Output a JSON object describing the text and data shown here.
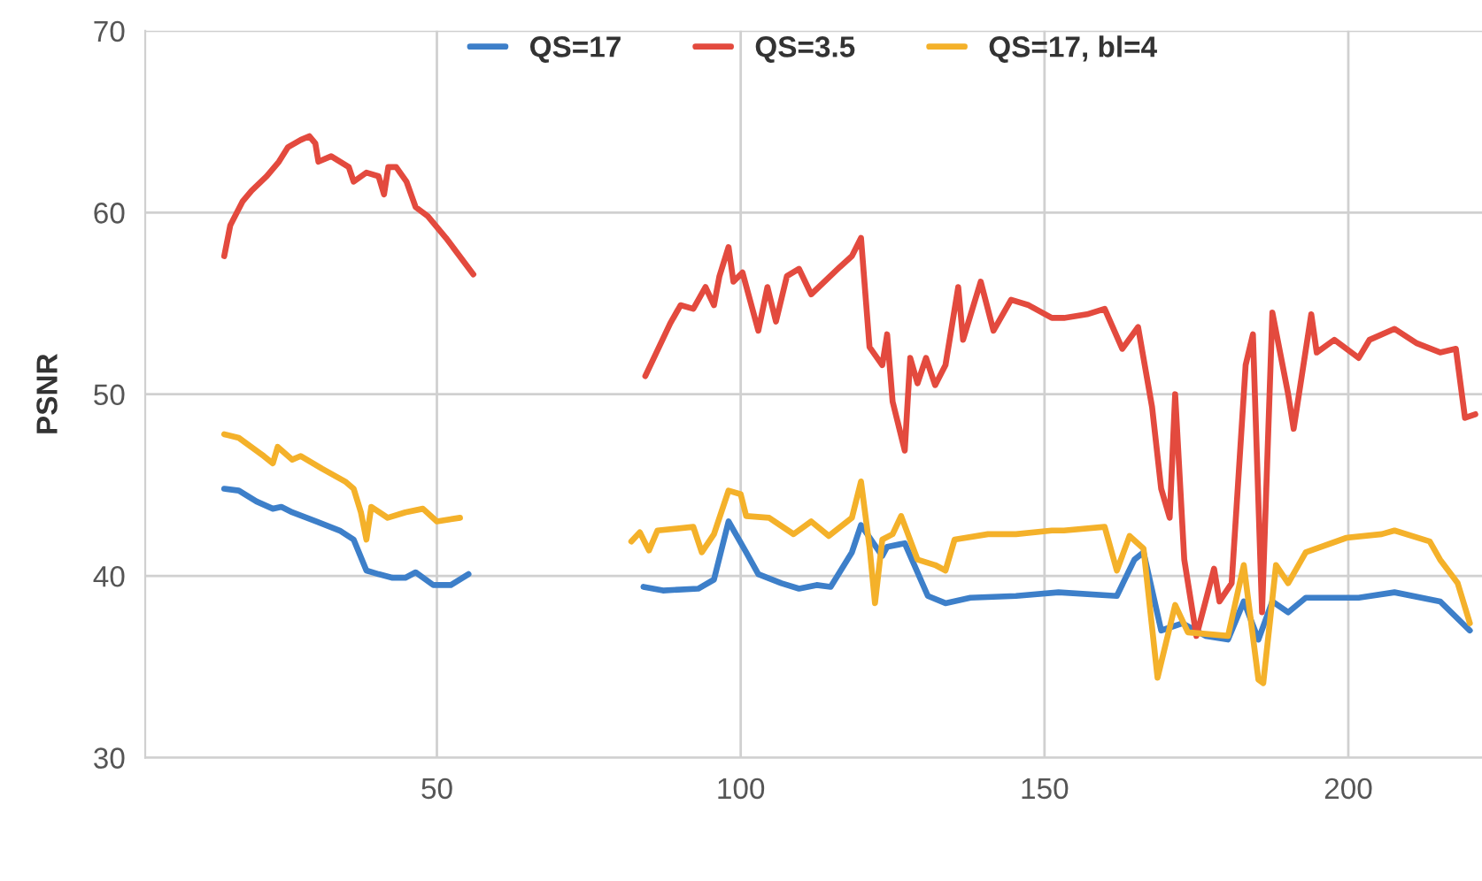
{
  "chart_data": {
    "type": "line",
    "ylabel": "PSNR",
    "xlim": [
      2,
      222
    ],
    "ylim": [
      30,
      70
    ],
    "xticks": [
      50,
      100,
      150,
      200
    ],
    "yticks": [
      30,
      40,
      50,
      60,
      70
    ],
    "grid": true,
    "legend": "top",
    "line_style": "solid",
    "marker": "none",
    "series": [
      {
        "name": "QS=17",
        "color": "#3d7fc9",
        "x": [
          15,
          17.4,
          20.3,
          23,
          24.4,
          26.2,
          30.2,
          34,
          36.3,
          38.4,
          40.4,
          42.7,
          44.8,
          46.5,
          49.4,
          52.3,
          55.2,
          70,
          84,
          87.2,
          93,
          95.6,
          98,
          100.9,
          102.9,
          106.7,
          109.6,
          112.5,
          114.8,
          118.3,
          119.8,
          123.3,
          124.1,
          127,
          130.8,
          133.7,
          137.8,
          145.3,
          152.3,
          161.9,
          164.8,
          166.3,
          169.2,
          172.7,
          176.5,
          180.2,
          182.8,
          185.2,
          187.5,
          190.1,
          193,
          201.7,
          207.6,
          215.1,
          220
        ],
        "values": [
          44.8,
          44.7,
          44.1,
          43.7,
          43.8,
          43.5,
          43,
          42.5,
          42,
          40.3,
          40.1,
          39.9,
          39.9,
          40.2,
          39.5,
          39.5,
          40.1,
          null,
          39.4,
          39.2,
          39.3,
          39.8,
          43,
          41.3,
          40.1,
          39.6,
          39.3,
          39.5,
          39.4,
          41.3,
          42.8,
          41.1,
          41.6,
          41.8,
          38.9,
          38.5,
          38.8,
          38.9,
          39.1,
          38.9,
          40.9,
          41.3,
          37,
          37.4,
          36.7,
          36.5,
          38.6,
          36.5,
          38.6,
          38,
          38.8,
          38.8,
          39.1,
          38.6,
          37
        ]
      },
      {
        "name": "QS=3.5",
        "color": "#e34a3e",
        "x": [
          15,
          16,
          18,
          19.5,
          22,
          24,
          25.5,
          27.6,
          29,
          30,
          30.5,
          32.6,
          35.5,
          36.3,
          38.4,
          40.4,
          41.3,
          42,
          43.3,
          45,
          46.5,
          48.5,
          51.5,
          56,
          70,
          84.3,
          88.4,
          90.1,
          92.2,
          94.2,
          95.6,
          96.5,
          98,
          98.8,
          100.3,
          102.9,
          104.4,
          105.8,
          107.6,
          109.6,
          111.6,
          116.3,
          118.3,
          119.8,
          121.2,
          123.3,
          124.1,
          125,
          127,
          127.9,
          129.1,
          130.5,
          132,
          133.7,
          135.8,
          136.6,
          139.5,
          141.6,
          144.5,
          147.4,
          151.2,
          153.2,
          157,
          159.9,
          162.8,
          165.4,
          167.7,
          169.2,
          170.6,
          171.5,
          173,
          175,
          176.5,
          177.9,
          178.8,
          180.8,
          183.1,
          184.3,
          185.8,
          187.5,
          190.1,
          191,
          193.9,
          194.8,
          197.7,
          201.7,
          203.5,
          207.6,
          211.3,
          215.1,
          217.7,
          219.2,
          220.9
        ],
        "values": [
          57.6,
          59.3,
          60.6,
          61.2,
          62,
          62.8,
          63.6,
          64,
          64.2,
          63.8,
          62.8,
          63.1,
          62.5,
          61.7,
          62.2,
          62,
          61,
          62.5,
          62.5,
          61.7,
          60.3,
          59.8,
          58.6,
          56.6,
          null,
          51,
          53.9,
          54.9,
          54.7,
          55.9,
          54.9,
          56.5,
          58.1,
          56.2,
          56.7,
          53.5,
          55.9,
          54,
          56.5,
          56.9,
          55.5,
          57,
          57.6,
          58.6,
          52.6,
          51.6,
          53.3,
          49.6,
          46.9,
          52,
          50.6,
          52,
          50.5,
          51.6,
          55.9,
          53,
          56.2,
          53.5,
          55.2,
          54.9,
          54.2,
          54.2,
          54.4,
          54.7,
          52.5,
          53.7,
          49.3,
          44.8,
          43.2,
          50,
          40.9,
          36.7,
          38.6,
          40.4,
          38.6,
          39.6,
          51.6,
          53.3,
          38,
          54.5,
          50,
          48.1,
          54.4,
          52.3,
          53,
          52,
          53,
          53.6,
          52.8,
          52.3,
          52.5,
          48.7,
          48.9
        ]
      },
      {
        "name": "QS=17, bl=4",
        "color": "#f4b12a",
        "x": [
          15,
          17.4,
          21.5,
          23,
          23.8,
          26.2,
          27.6,
          31.1,
          34.9,
          36.3,
          37.5,
          38.4,
          39.2,
          41.9,
          44.8,
          47.7,
          50,
          53.8,
          70,
          82,
          83.4,
          84.9,
          86.3,
          92.2,
          93.6,
          95.6,
          98,
          100,
          100.9,
          104.7,
          108.7,
          111.6,
          114.5,
          118.3,
          119.8,
          121.2,
          122.1,
          123.3,
          125,
          126.4,
          129.1,
          132,
          133.7,
          135.2,
          140.7,
          145.3,
          151.2,
          153.2,
          159.9,
          161.9,
          164,
          166.3,
          168.6,
          171.5,
          173.6,
          180.2,
          182.8,
          185.2,
          186,
          188.1,
          190.1,
          193,
          199.7,
          205.5,
          207.6,
          213.4,
          215.1,
          218,
          220
        ],
        "values": [
          47.8,
          47.6,
          46.6,
          46.2,
          47.1,
          46.4,
          46.6,
          45.9,
          45.2,
          44.8,
          43.5,
          42,
          43.8,
          43.2,
          43.5,
          43.7,
          43,
          43.2,
          null,
          41.9,
          42.4,
          41.4,
          42.5,
          42.7,
          41.3,
          42.3,
          44.7,
          44.5,
          43.3,
          43.2,
          42.3,
          43,
          42.2,
          43.2,
          45.2,
          41.6,
          38.5,
          42,
          42.3,
          43.3,
          40.9,
          40.6,
          40.3,
          42,
          42.3,
          42.3,
          42.5,
          42.5,
          42.7,
          40.3,
          42.2,
          41.5,
          34.4,
          38.4,
          36.9,
          36.7,
          40.6,
          34.3,
          34.1,
          40.6,
          39.6,
          41.3,
          42.1,
          42.3,
          42.5,
          41.9,
          40.9,
          39.6,
          37.4
        ]
      }
    ]
  }
}
